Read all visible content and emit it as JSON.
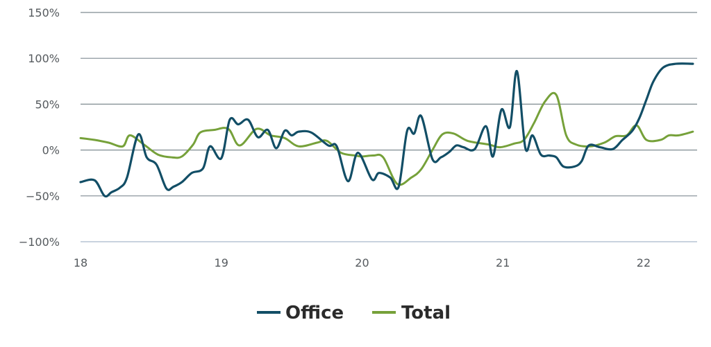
{
  "chart_data": {
    "type": "line",
    "title": "",
    "xlabel": "",
    "ylabel": "",
    "xlim": [
      18,
      22.38
    ],
    "ylim": [
      -100,
      150
    ],
    "x_ticks": [
      18,
      19,
      20,
      21,
      22
    ],
    "x_tick_labels": [
      "18",
      "19",
      "20",
      "21",
      "22"
    ],
    "y_ticks": [
      150,
      100,
      50,
      0,
      -50,
      -100
    ],
    "y_tick_labels": [
      "150%",
      "100%",
      "50%",
      "0%",
      "−50%",
      "−100%"
    ],
    "grid": "horizontal",
    "legend_position": "bottom",
    "colors": {
      "Office": "#124e66",
      "Total": "#76a13a",
      "grid": "#7f8a90",
      "axis": "#c8d3df"
    },
    "series": [
      {
        "name": "Office",
        "x": [
          18.0,
          18.1,
          18.17,
          18.22,
          18.28,
          18.33,
          18.41,
          18.47,
          18.54,
          18.61,
          18.66,
          18.72,
          18.79,
          18.87,
          18.92,
          19.0,
          19.06,
          19.12,
          19.19,
          19.26,
          19.33,
          19.39,
          19.45,
          19.5,
          19.55,
          19.64,
          19.76,
          19.82,
          19.9,
          19.97,
          20.07,
          20.12,
          20.2,
          20.26,
          20.32,
          20.37,
          20.42,
          20.5,
          20.56,
          20.62,
          20.67,
          20.72,
          20.8,
          20.88,
          20.93,
          20.99,
          21.05,
          21.1,
          21.16,
          21.21,
          21.27,
          21.33,
          21.38,
          21.43,
          21.51,
          21.56,
          21.61,
          21.69,
          21.78,
          21.85,
          21.92,
          21.97,
          22.02,
          22.07,
          22.14,
          22.23,
          22.35
        ],
        "y": [
          -35,
          -33,
          -50,
          -46,
          -41,
          -30,
          17,
          -8,
          -16,
          -42,
          -40,
          -35,
          -25,
          -20,
          4,
          -9,
          33,
          28,
          33,
          14,
          22,
          2,
          21,
          16,
          20,
          19,
          5,
          4,
          -34,
          -3,
          -32,
          -25,
          -30,
          -40,
          21,
          18,
          37,
          -10,
          -8,
          -2,
          5,
          3,
          1,
          26,
          -7,
          44,
          25,
          86,
          2,
          16,
          -5,
          -6,
          -8,
          -18,
          -18,
          -12,
          5,
          3,
          1,
          11,
          21,
          35,
          55,
          75,
          90,
          94,
          94
        ],
        "values": [
          -35,
          -33,
          -50,
          -46,
          -41,
          -30,
          17,
          -8,
          -16,
          -42,
          -40,
          -35,
          -25,
          -20,
          4,
          -9,
          33,
          28,
          33,
          14,
          22,
          2,
          21,
          16,
          20,
          19,
          5,
          4,
          -34,
          -3,
          -32,
          -25,
          -30,
          -40,
          21,
          18,
          37,
          -10,
          -8,
          -2,
          5,
          3,
          1,
          26,
          -7,
          44,
          25,
          86,
          2,
          16,
          -5,
          -6,
          -8,
          -18,
          -18,
          -12,
          5,
          3,
          1,
          11,
          21,
          35,
          55,
          75,
          90,
          94,
          94
        ]
      },
      {
        "name": "Total",
        "x": [
          18.0,
          18.1,
          18.2,
          18.3,
          18.35,
          18.45,
          18.55,
          18.65,
          18.72,
          18.8,
          18.85,
          18.95,
          19.05,
          19.13,
          19.25,
          19.35,
          19.45,
          19.55,
          19.68,
          19.75,
          19.85,
          19.95,
          20.0,
          20.08,
          20.15,
          20.25,
          20.35,
          20.42,
          20.5,
          20.57,
          20.65,
          20.75,
          20.9,
          20.98,
          21.08,
          21.15,
          21.22,
          21.3,
          21.38,
          21.45,
          21.52,
          21.62,
          21.72,
          21.8,
          21.88,
          21.95,
          22.02,
          22.12,
          22.18,
          22.25,
          22.35
        ],
        "y": [
          13,
          11,
          8,
          4,
          16,
          6,
          -5,
          -8,
          -7,
          6,
          19,
          22,
          23,
          5,
          23,
          16,
          13,
          4,
          8,
          10,
          -3,
          -6,
          -7,
          -6,
          -8,
          -37,
          -30,
          -21,
          0,
          17,
          18,
          10,
          6,
          3,
          7,
          11,
          29,
          53,
          60,
          16,
          6,
          4,
          8,
          15,
          16,
          27,
          11,
          11,
          16,
          16,
          20
        ],
        "values": [
          13,
          11,
          8,
          4,
          16,
          6,
          -5,
          -8,
          -7,
          6,
          19,
          22,
          23,
          5,
          23,
          16,
          13,
          4,
          8,
          10,
          -3,
          -6,
          -7,
          -6,
          -8,
          -37,
          -30,
          -21,
          0,
          17,
          18,
          10,
          6,
          3,
          7,
          11,
          29,
          53,
          60,
          16,
          6,
          4,
          8,
          15,
          16,
          27,
          11,
          11,
          16,
          16,
          20
        ]
      }
    ]
  }
}
